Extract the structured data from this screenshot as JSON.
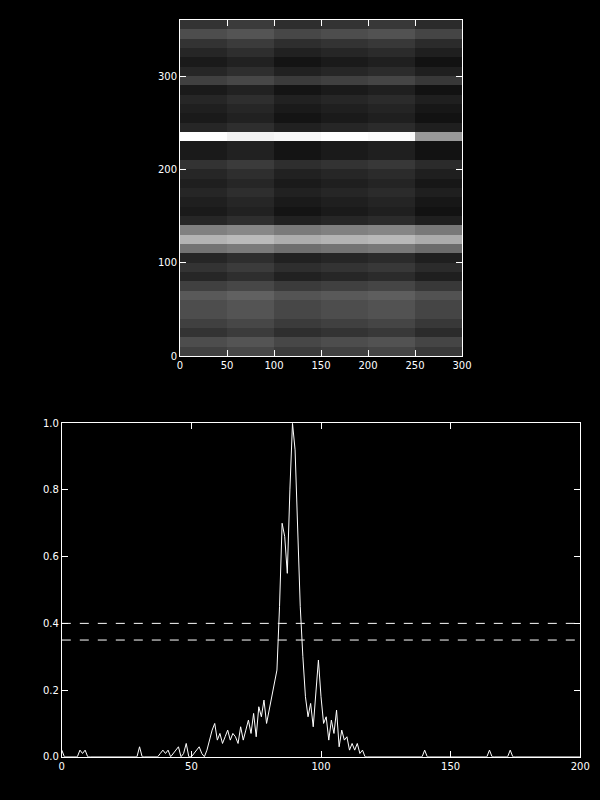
{
  "chart_data": [
    {
      "type": "heatmap",
      "x": [
        0,
        50,
        100,
        150,
        200,
        250,
        300
      ],
      "y": [
        0,
        10,
        20,
        30,
        40,
        50,
        60,
        70,
        80,
        90,
        100,
        110,
        120,
        130,
        140,
        150,
        160,
        170,
        180,
        190,
        200,
        210,
        220,
        230,
        240,
        250,
        260,
        270,
        280,
        290,
        300,
        310,
        320,
        330,
        340,
        350,
        360
      ],
      "z": [
        [
          0.25,
          0.28,
          0.23,
          0.25,
          0.27,
          0.22
        ],
        [
          0.3,
          0.33,
          0.28,
          0.3,
          0.32,
          0.27
        ],
        [
          0.2,
          0.23,
          0.18,
          0.2,
          0.22,
          0.17
        ],
        [
          0.25,
          0.28,
          0.23,
          0.25,
          0.27,
          0.22
        ],
        [
          0.3,
          0.33,
          0.28,
          0.3,
          0.32,
          0.27
        ],
        [
          0.3,
          0.33,
          0.28,
          0.3,
          0.32,
          0.27
        ],
        [
          0.35,
          0.38,
          0.33,
          0.35,
          0.37,
          0.32
        ],
        [
          0.25,
          0.28,
          0.23,
          0.25,
          0.27,
          0.22
        ],
        [
          0.15,
          0.18,
          0.13,
          0.15,
          0.17,
          0.12
        ],
        [
          0.2,
          0.23,
          0.18,
          0.2,
          0.22,
          0.17
        ],
        [
          0.15,
          0.18,
          0.13,
          0.15,
          0.17,
          0.12
        ],
        [
          0.45,
          0.48,
          0.43,
          0.45,
          0.47,
          0.42
        ],
        [
          0.7,
          0.73,
          0.68,
          0.7,
          0.72,
          0.67
        ],
        [
          0.5,
          0.53,
          0.48,
          0.5,
          0.52,
          0.47
        ],
        [
          0.15,
          0.18,
          0.13,
          0.15,
          0.17,
          0.12
        ],
        [
          0.1,
          0.13,
          0.08,
          0.1,
          0.12,
          0.07
        ],
        [
          0.12,
          0.15,
          0.1,
          0.12,
          0.14,
          0.09
        ],
        [
          0.15,
          0.18,
          0.13,
          0.15,
          0.17,
          0.12
        ],
        [
          0.12,
          0.15,
          0.1,
          0.12,
          0.14,
          0.09
        ],
        [
          0.15,
          0.18,
          0.13,
          0.15,
          0.17,
          0.12
        ],
        [
          0.2,
          0.23,
          0.18,
          0.2,
          0.22,
          0.17
        ],
        [
          0.1,
          0.13,
          0.08,
          0.1,
          0.12,
          0.07
        ],
        [
          0.1,
          0.13,
          0.08,
          0.1,
          0.12,
          0.07
        ],
        [
          1.0,
          0.95,
          0.97,
          1.0,
          0.98,
          0.6
        ],
        [
          0.15,
          0.18,
          0.13,
          0.15,
          0.17,
          0.12
        ],
        [
          0.1,
          0.13,
          0.08,
          0.1,
          0.12,
          0.07
        ],
        [
          0.12,
          0.15,
          0.1,
          0.12,
          0.14,
          0.09
        ],
        [
          0.15,
          0.18,
          0.13,
          0.15,
          0.17,
          0.12
        ],
        [
          0.1,
          0.13,
          0.08,
          0.1,
          0.12,
          0.07
        ],
        [
          0.25,
          0.28,
          0.23,
          0.25,
          0.27,
          0.22
        ],
        [
          0.15,
          0.18,
          0.13,
          0.15,
          0.17,
          0.12
        ],
        [
          0.1,
          0.13,
          0.08,
          0.1,
          0.12,
          0.07
        ],
        [
          0.15,
          0.18,
          0.13,
          0.15,
          0.17,
          0.12
        ],
        [
          0.2,
          0.23,
          0.18,
          0.2,
          0.22,
          0.17
        ],
        [
          0.3,
          0.33,
          0.28,
          0.3,
          0.32,
          0.27
        ],
        [
          0.2,
          0.23,
          0.18,
          0.2,
          0.22,
          0.17
        ]
      ],
      "zlim": [
        0,
        1
      ],
      "xlim": [
        0,
        300
      ],
      "ylim": [
        0,
        360
      ],
      "xticks": [
        0,
        50,
        100,
        150,
        200,
        250,
        300
      ],
      "yticks": [
        0,
        100,
        200,
        300
      ]
    },
    {
      "type": "line",
      "x": [
        0,
        1,
        2,
        3,
        4,
        5,
        6,
        7,
        8,
        9,
        10,
        11,
        12,
        13,
        14,
        15,
        16,
        17,
        18,
        19,
        20,
        21,
        22,
        23,
        24,
        25,
        26,
        27,
        28,
        29,
        30,
        31,
        32,
        33,
        34,
        35,
        36,
        37,
        38,
        39,
        40,
        41,
        42,
        43,
        44,
        45,
        46,
        47,
        48,
        49,
        50,
        51,
        52,
        53,
        54,
        55,
        56,
        57,
        58,
        59,
        60,
        61,
        62,
        63,
        64,
        65,
        66,
        67,
        68,
        69,
        70,
        71,
        72,
        73,
        74,
        75,
        76,
        77,
        78,
        79,
        80,
        81,
        82,
        83,
        84,
        85,
        86,
        87,
        88,
        89,
        90,
        91,
        92,
        93,
        94,
        95,
        96,
        97,
        98,
        99,
        100,
        101,
        102,
        103,
        104,
        105,
        106,
        107,
        108,
        109,
        110,
        111,
        112,
        113,
        114,
        115,
        116,
        117,
        118,
        119,
        120,
        121,
        122,
        123,
        124,
        125,
        126,
        127,
        128,
        129,
        130,
        131,
        132,
        133,
        134,
        135,
        136,
        137,
        138,
        139,
        140,
        141,
        142,
        143,
        144,
        145,
        146,
        147,
        148,
        149,
        150,
        151,
        152,
        153,
        154,
        155,
        156,
        157,
        158,
        159,
        160,
        161,
        162,
        163,
        164,
        165,
        166,
        167,
        168,
        169,
        170,
        171,
        172,
        173,
        174,
        175,
        176,
        177,
        178,
        179,
        180,
        181,
        182,
        183,
        184,
        185,
        186,
        187,
        188,
        189,
        190,
        191,
        192,
        193,
        194,
        195,
        196,
        197,
        198,
        199,
        200
      ],
      "series": [
        {
          "color": "#ffffff",
          "line_style": "solid",
          "values": [
            0.02,
            0,
            0,
            0,
            0,
            0,
            0,
            0.02,
            0.01,
            0.02,
            0,
            0,
            0,
            0,
            0,
            0,
            0,
            0,
            0,
            0,
            0,
            0,
            0,
            0,
            0,
            0,
            0,
            0,
            0,
            0,
            0.03,
            0,
            0,
            0,
            0,
            0,
            0,
            0,
            0.01,
            0.02,
            0.01,
            0.02,
            0,
            0.01,
            0.02,
            0.03,
            0,
            0.01,
            0.04,
            0,
            0,
            0.01,
            0.02,
            0.03,
            0.01,
            0,
            0.02,
            0.05,
            0.08,
            0.1,
            0.05,
            0.07,
            0.04,
            0.06,
            0.08,
            0.05,
            0.07,
            0.06,
            0.04,
            0.09,
            0.05,
            0.08,
            0.11,
            0.07,
            0.13,
            0.06,
            0.15,
            0.12,
            0.17,
            0.1,
            0.14,
            0.18,
            0.22,
            0.26,
            0.45,
            0.7,
            0.66,
            0.55,
            0.8,
            1.0,
            0.92,
            0.7,
            0.45,
            0.3,
            0.18,
            0.12,
            0.16,
            0.09,
            0.2,
            0.29,
            0.18,
            0.1,
            0.12,
            0.05,
            0.11,
            0.07,
            0.14,
            0.03,
            0.08,
            0.05,
            0.06,
            0.02,
            0.04,
            0.02,
            0.04,
            0.01,
            0.02,
            0,
            0,
            0,
            0,
            0,
            0,
            0,
            0,
            0,
            0,
            0,
            0,
            0,
            0,
            0,
            0,
            0,
            0,
            0,
            0,
            0,
            0,
            0,
            0.02,
            0,
            0,
            0,
            0,
            0,
            0,
            0,
            0,
            0,
            0,
            0,
            0,
            0,
            0,
            0,
            0,
            0,
            0,
            0,
            0,
            0,
            0,
            0,
            0,
            0.02,
            0,
            0,
            0,
            0,
            0,
            0,
            0,
            0.02,
            0,
            0,
            0,
            0,
            0,
            0,
            0,
            0,
            0,
            0,
            0,
            0,
            0,
            0,
            0,
            0,
            0,
            0,
            0,
            0,
            0,
            0,
            0,
            0,
            0,
            0,
            0
          ]
        }
      ],
      "reference_lines": [
        {
          "y": 0.4,
          "line_style": "dash",
          "color": "#ffffff"
        },
        {
          "y": 0.35,
          "line_style": "dash",
          "color": "#ffffff"
        }
      ],
      "xlim": [
        0,
        200
      ],
      "ylim": [
        0,
        1.0
      ],
      "xticks": [
        0,
        50,
        100,
        150,
        200
      ],
      "yticks": [
        {
          "value": 0,
          "label": "0.0"
        },
        {
          "value": 0.2,
          "label": "0.2"
        },
        {
          "value": 0.4,
          "label": "0.4"
        },
        {
          "value": 0.6,
          "label": "0.6"
        },
        {
          "value": 0.8,
          "label": "0.8"
        },
        {
          "value": 1.0,
          "label": "1.0"
        }
      ]
    }
  ]
}
